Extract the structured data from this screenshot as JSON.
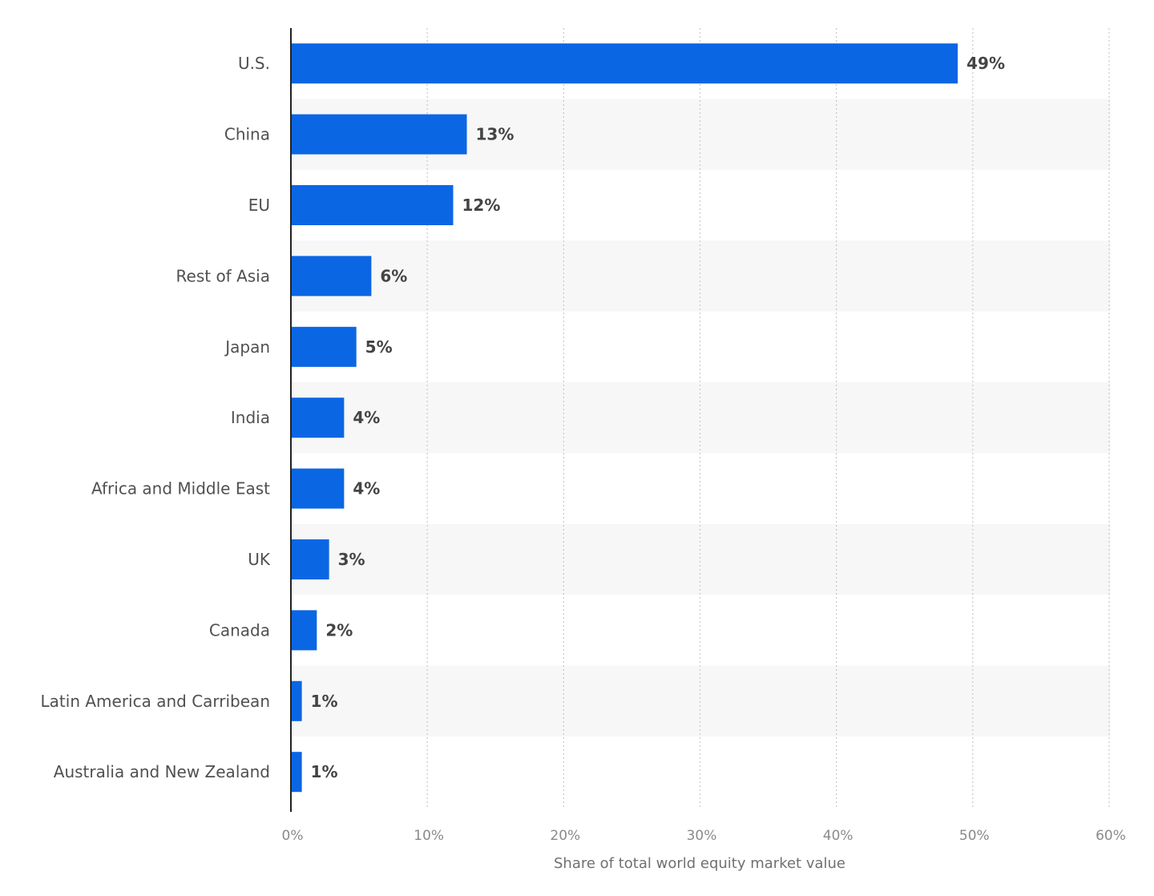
{
  "chart_data": {
    "type": "bar",
    "orientation": "horizontal",
    "categories": [
      "U.S.",
      "China",
      "EU",
      "Rest of Asia",
      "Japan",
      "India",
      "Africa and Middle East",
      "UK",
      "Canada",
      "Latin America and Carribean",
      "Australia and New Zealand"
    ],
    "values": [
      48.9,
      12.9,
      11.9,
      5.9,
      4.8,
      3.9,
      3.9,
      2.8,
      1.9,
      0.8,
      0.8
    ],
    "value_labels": [
      "49%",
      "13%",
      "12%",
      "6%",
      "5%",
      "4%",
      "4%",
      "3%",
      "2%",
      "1%",
      "1%"
    ],
    "xlabel": "Share of total world equity market value",
    "xlim": [
      0,
      60
    ],
    "xticks": [
      0,
      10,
      20,
      30,
      40,
      50,
      60
    ],
    "xtick_labels": [
      "0%",
      "10%",
      "20%",
      "30%",
      "40%",
      "50%",
      "60%"
    ],
    "grid": true,
    "colors": {
      "bar": "#0b66e4",
      "band": "#f7f7f7",
      "grid": "#c8c8c8",
      "axis": "#222222"
    }
  }
}
